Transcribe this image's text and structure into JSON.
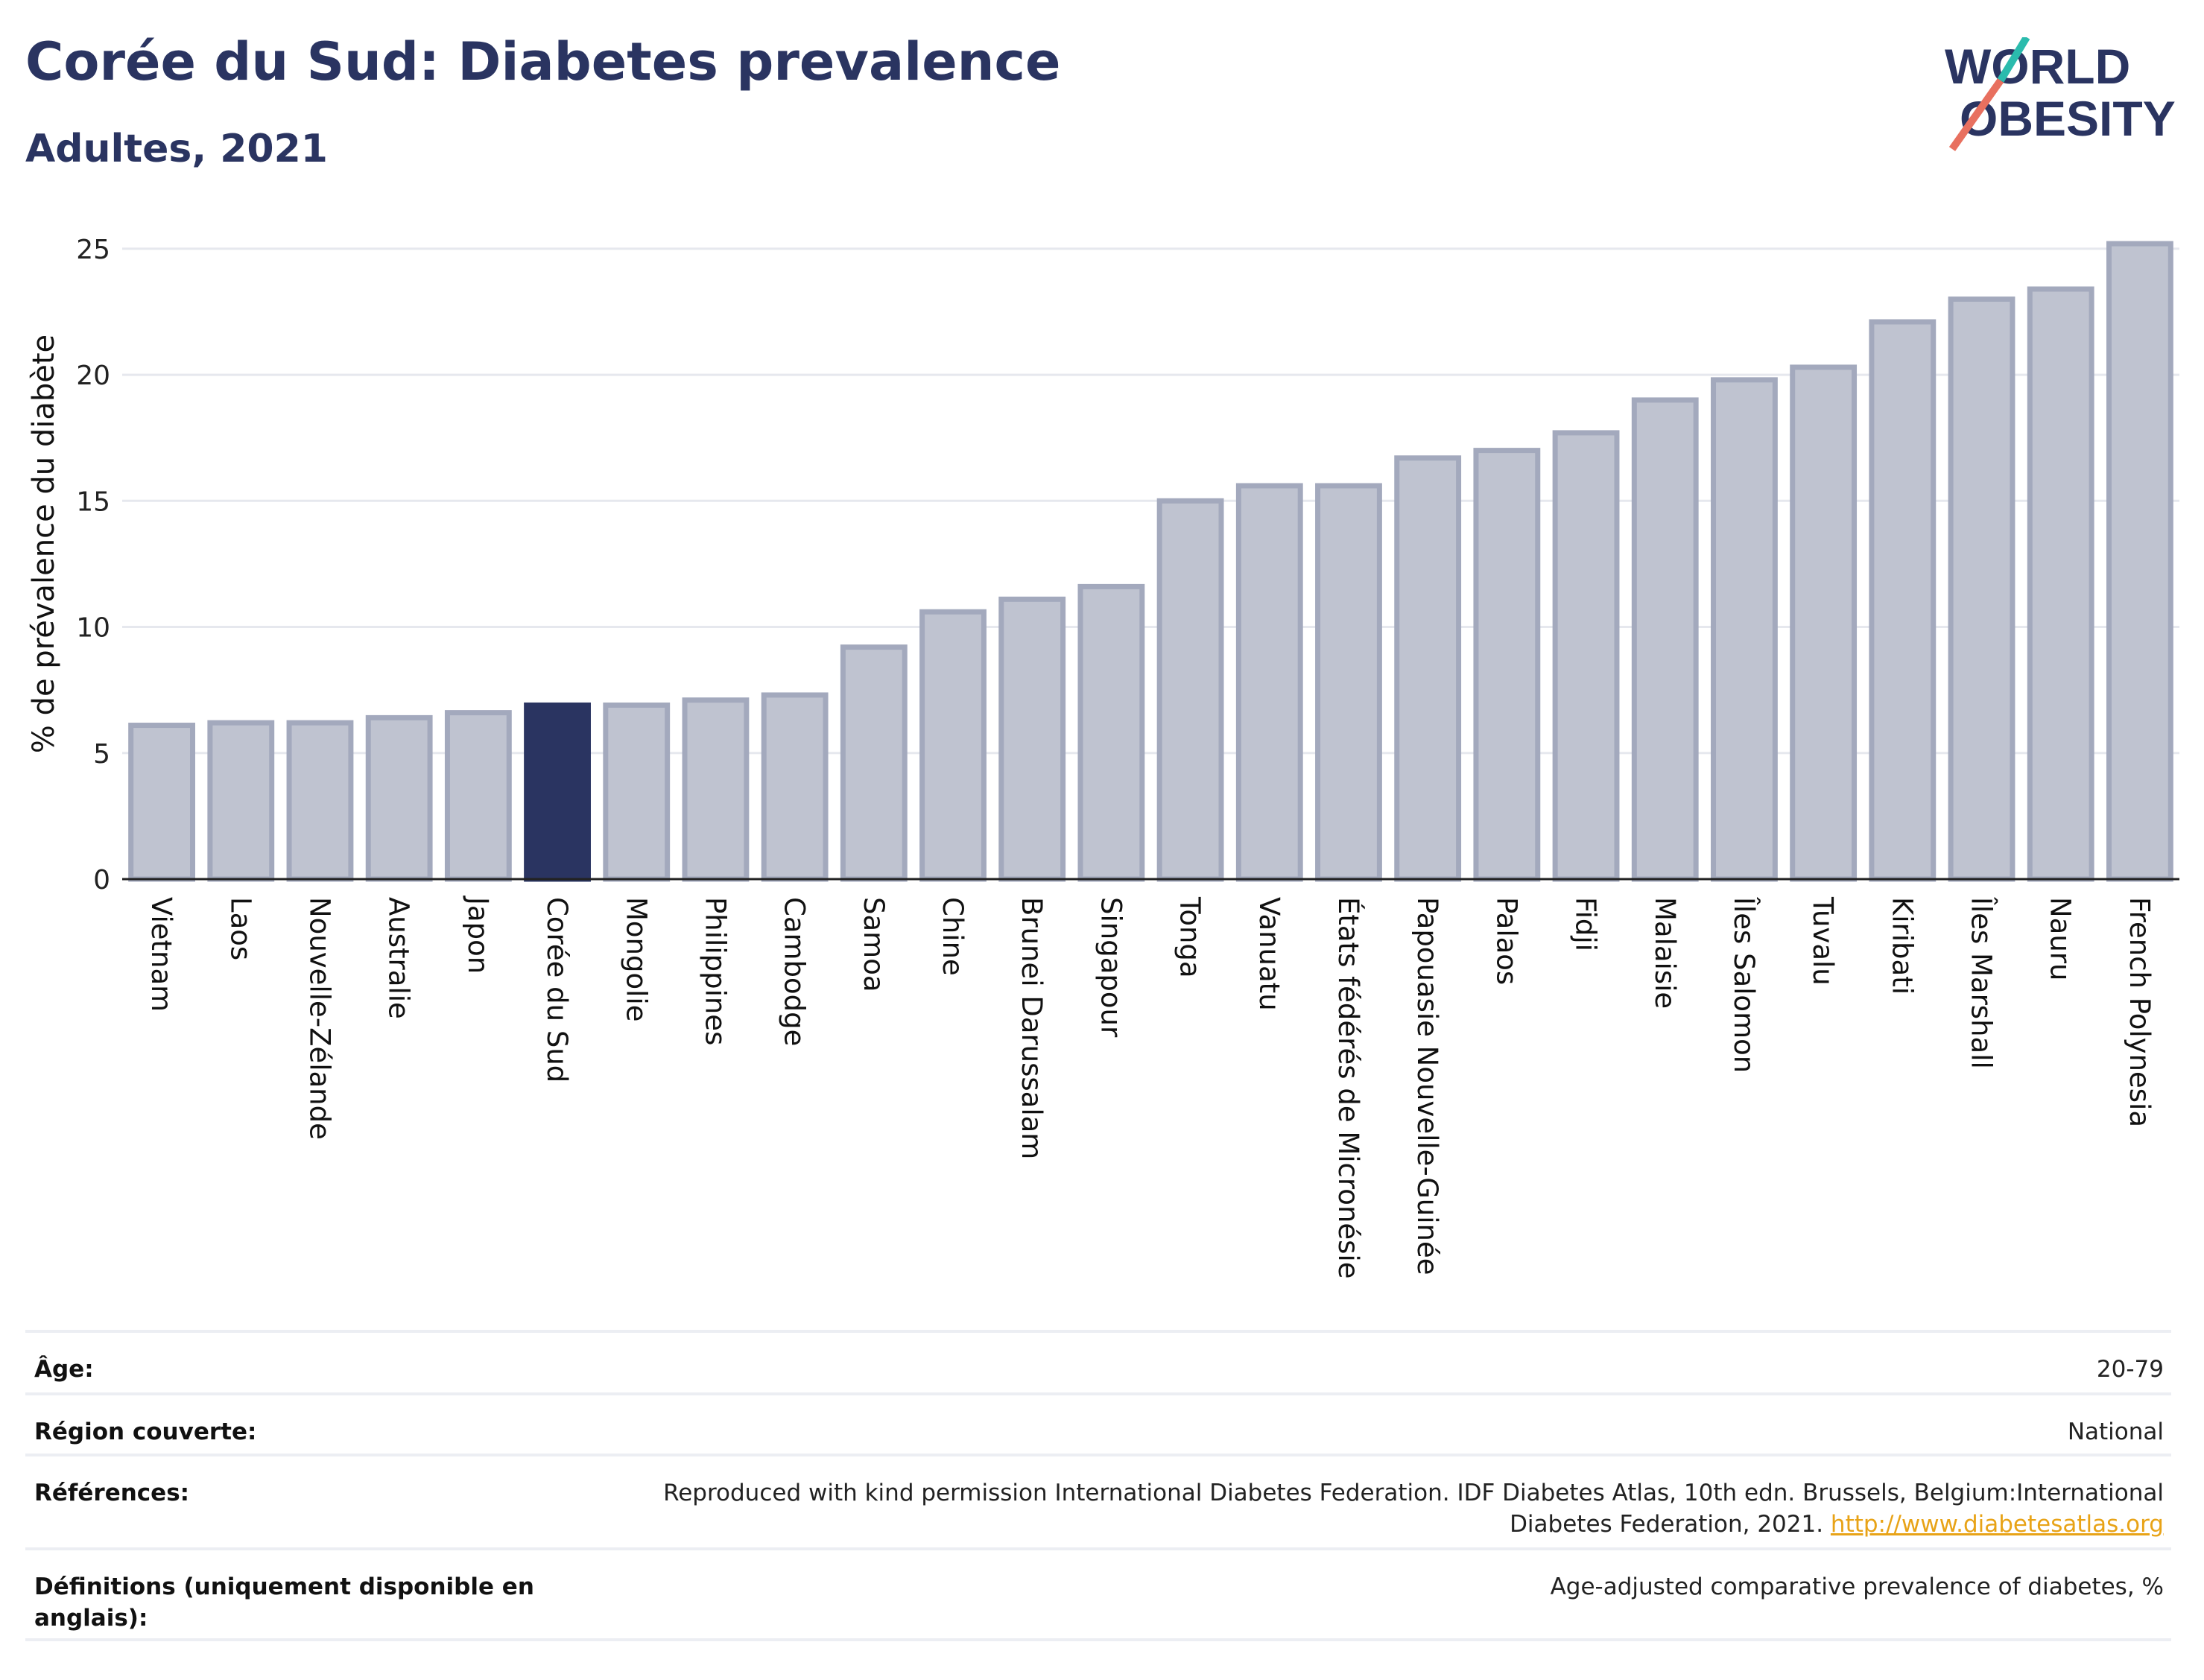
{
  "header": {
    "title": "Corée du Sud: Diabetes prevalence",
    "subtitle": "Adultes, 2021"
  },
  "logo": {
    "line1": "WORLD",
    "line2": "OBESITY",
    "slash_color_top": "#2bbbad",
    "slash_color_bottom": "#e8705f"
  },
  "chart_data": {
    "type": "bar",
    "ylabel": "% de prévalence du diabète",
    "xlabel": "",
    "ylim": [
      0,
      26
    ],
    "yticks": [
      0,
      5,
      10,
      15,
      20,
      25
    ],
    "grid": true,
    "highlight": "Corée du Sud",
    "colors": {
      "bar": "#bfc3d0",
      "bar_edge": "#a3a9bd",
      "highlight": "#2a3461"
    },
    "categories": [
      "Vietnam",
      "Laos",
      "Nouvelle-Zélande",
      "Australie",
      "Japon",
      "Corée du Sud",
      "Mongolie",
      "Philippines",
      "Cambodge",
      "Samoa",
      "Chine",
      "Brunei Darussalam",
      "Singapour",
      "Tonga",
      "Vanuatu",
      "États fédérés de Micronésie",
      "Papouasie Nouvelle-Guinée",
      "Palaos",
      "Fidji",
      "Malaisie",
      "Îles Salomon",
      "Tuvalu",
      "Kiribati",
      "Îles Marshall",
      "Nauru",
      "French Polynesia"
    ],
    "values": [
      6.1,
      6.2,
      6.2,
      6.4,
      6.6,
      6.9,
      6.9,
      7.1,
      7.3,
      9.2,
      10.6,
      11.1,
      11.6,
      15.0,
      15.6,
      15.6,
      16.7,
      17.0,
      17.7,
      19.0,
      19.8,
      20.3,
      22.1,
      23.0,
      23.4,
      25.2
    ]
  },
  "meta": {
    "rows": [
      {
        "label": "Âge:",
        "value": "20-79"
      },
      {
        "label": "Région couverte:",
        "value": "National"
      },
      {
        "label": "Références:",
        "value": "Reproduced with kind permission International Diabetes Federation.  IDF Diabetes Atlas, 10th edn. Brussels, Belgium:International Diabetes Federation, 2021.",
        "link": "http://www.diabetesatlas.org"
      },
      {
        "label": "Définitions (uniquement disponible en anglais):",
        "value": "Age-adjusted comparative prevalence of diabetes, %"
      }
    ]
  }
}
